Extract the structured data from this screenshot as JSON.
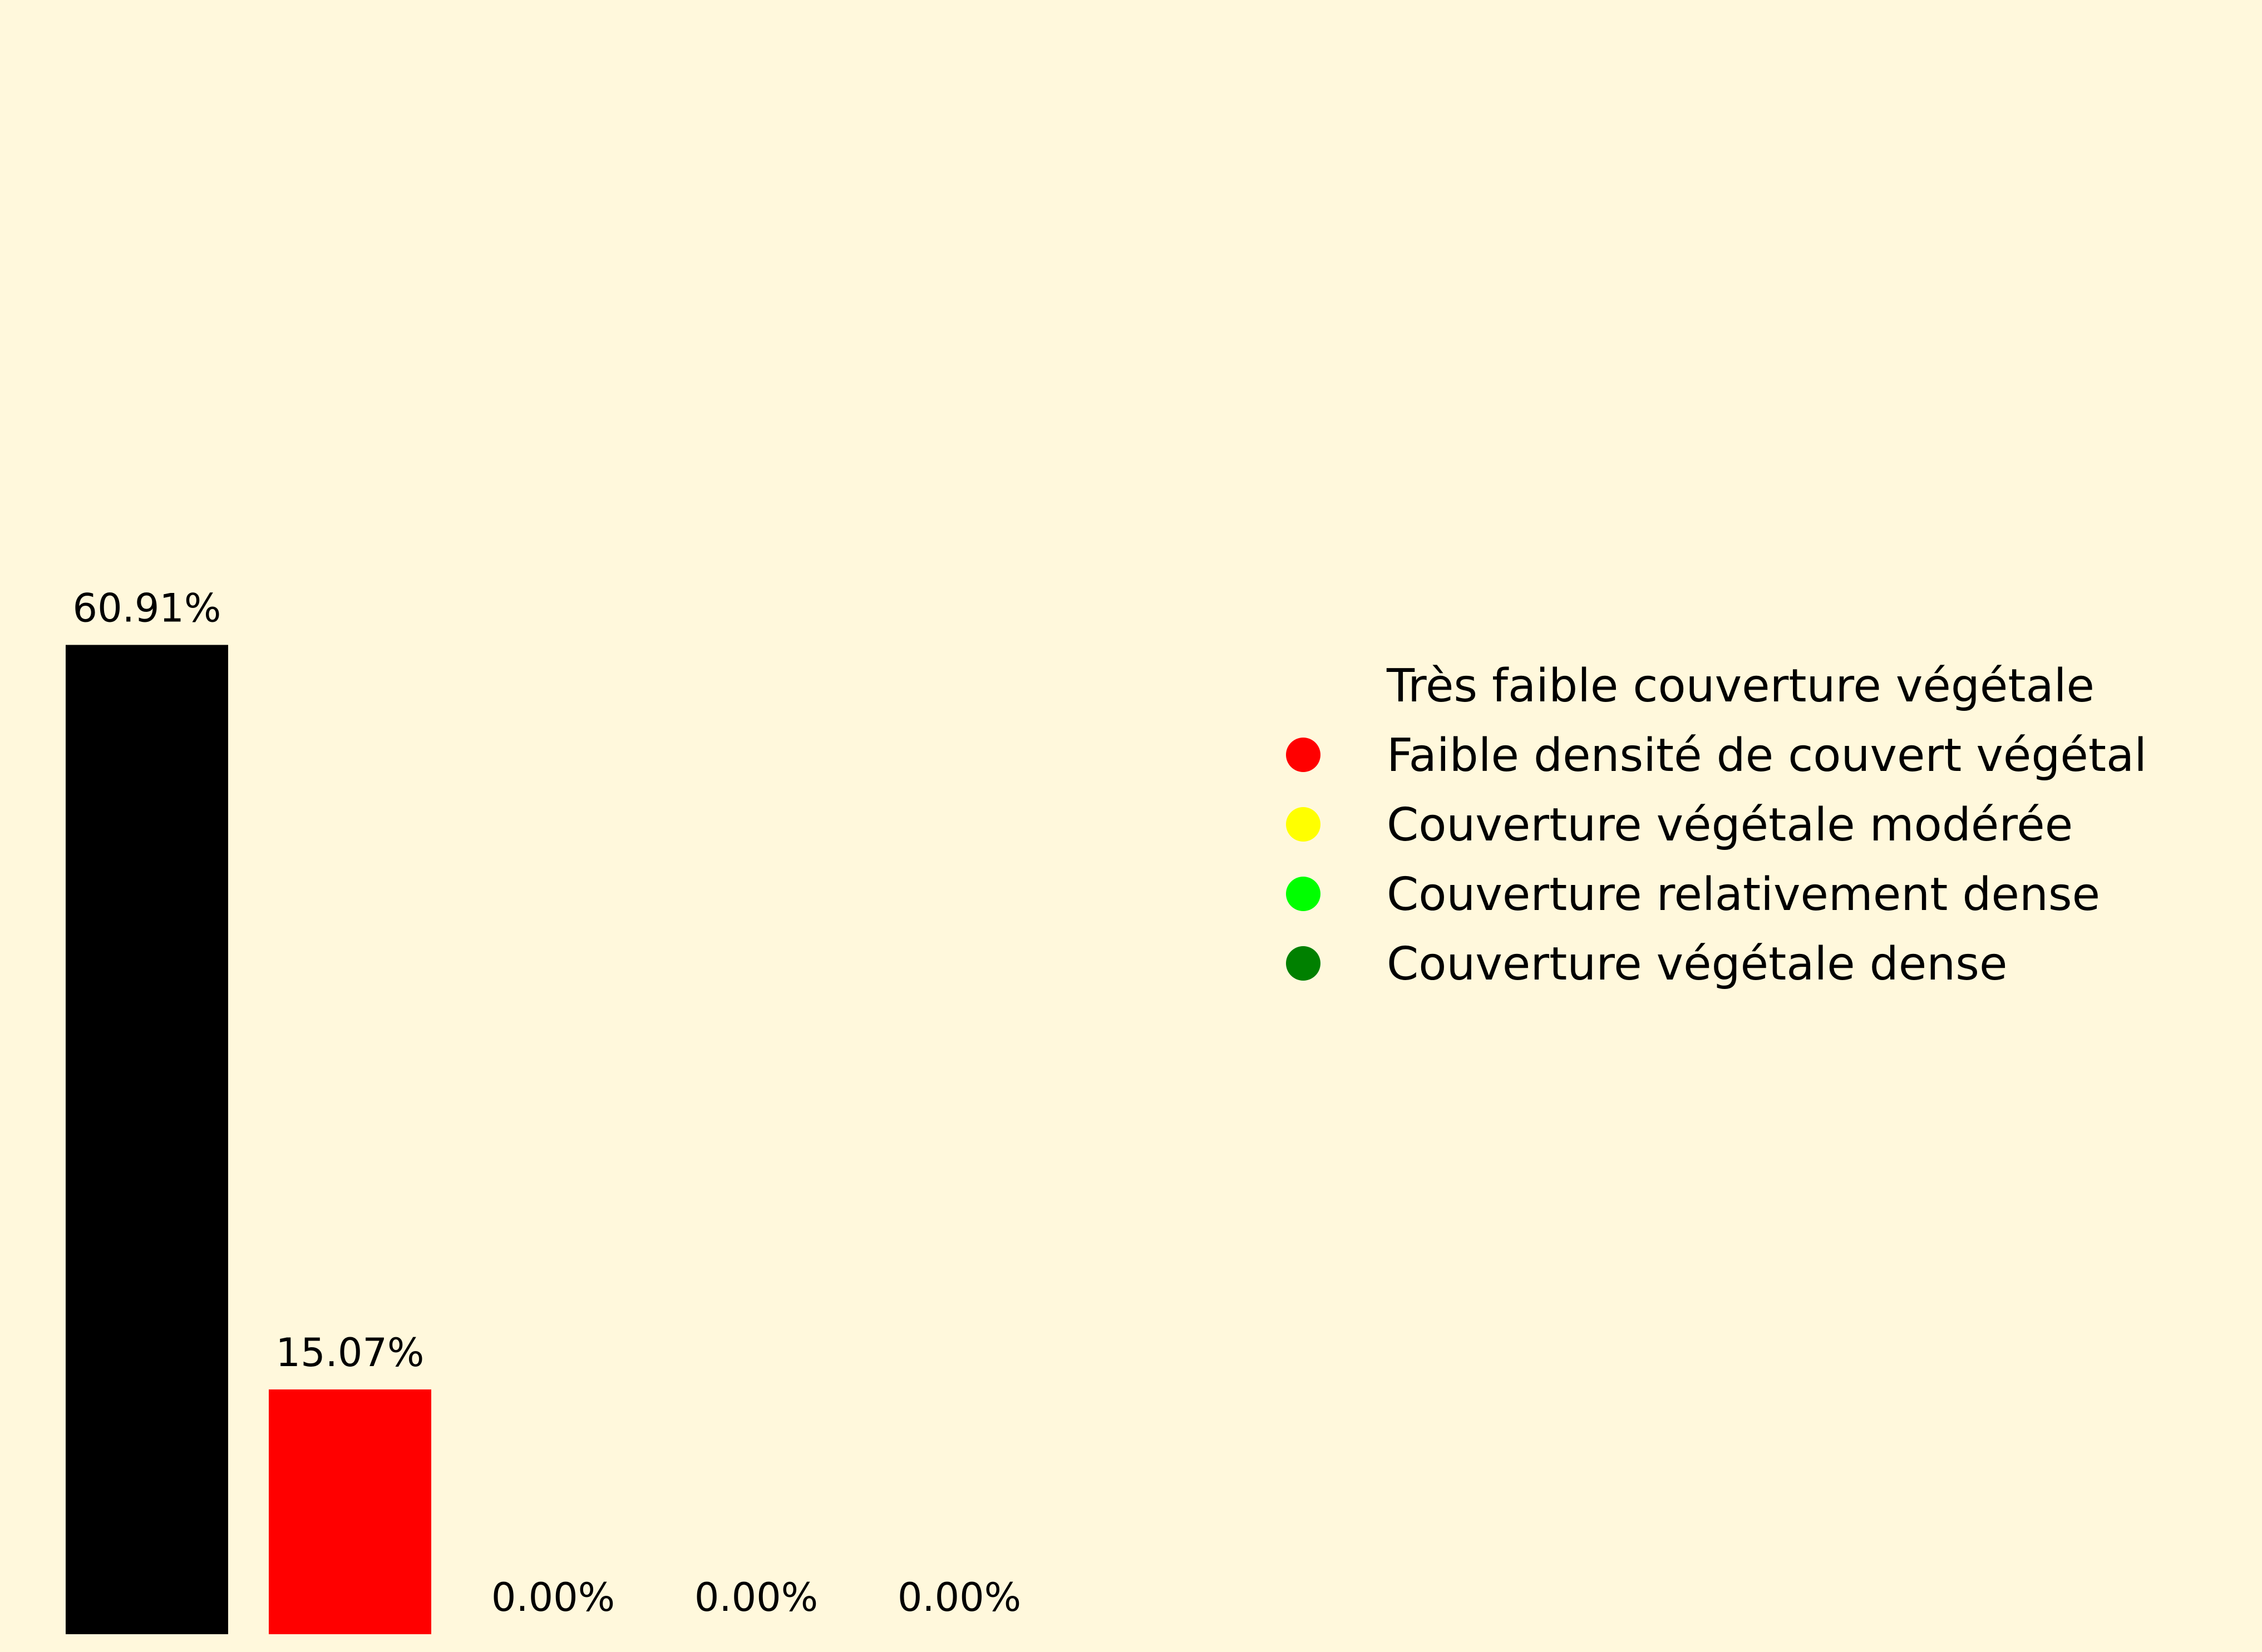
{
  "chart_data": {
    "type": "bar",
    "title": "",
    "xlabel": "",
    "ylabel": "",
    "ylim": [
      0,
      100
    ],
    "grid": false,
    "legend_position": "right",
    "categories": [
      "Très faible couverture végétale",
      "Faible densité de couvert végétal",
      "Couverture végétale modérée",
      "Couverture relativement dense",
      "Couverture végétale dense"
    ],
    "values": [
      60.91,
      15.07,
      0.0,
      0.0,
      0.0
    ],
    "value_labels": [
      "60.91%",
      "15.07%",
      "0.00%",
      "0.00%",
      "0.00%"
    ],
    "colors": [
      "#000000",
      "#ff0000",
      "#ffff00",
      "#00ff00",
      "#008000"
    ]
  }
}
